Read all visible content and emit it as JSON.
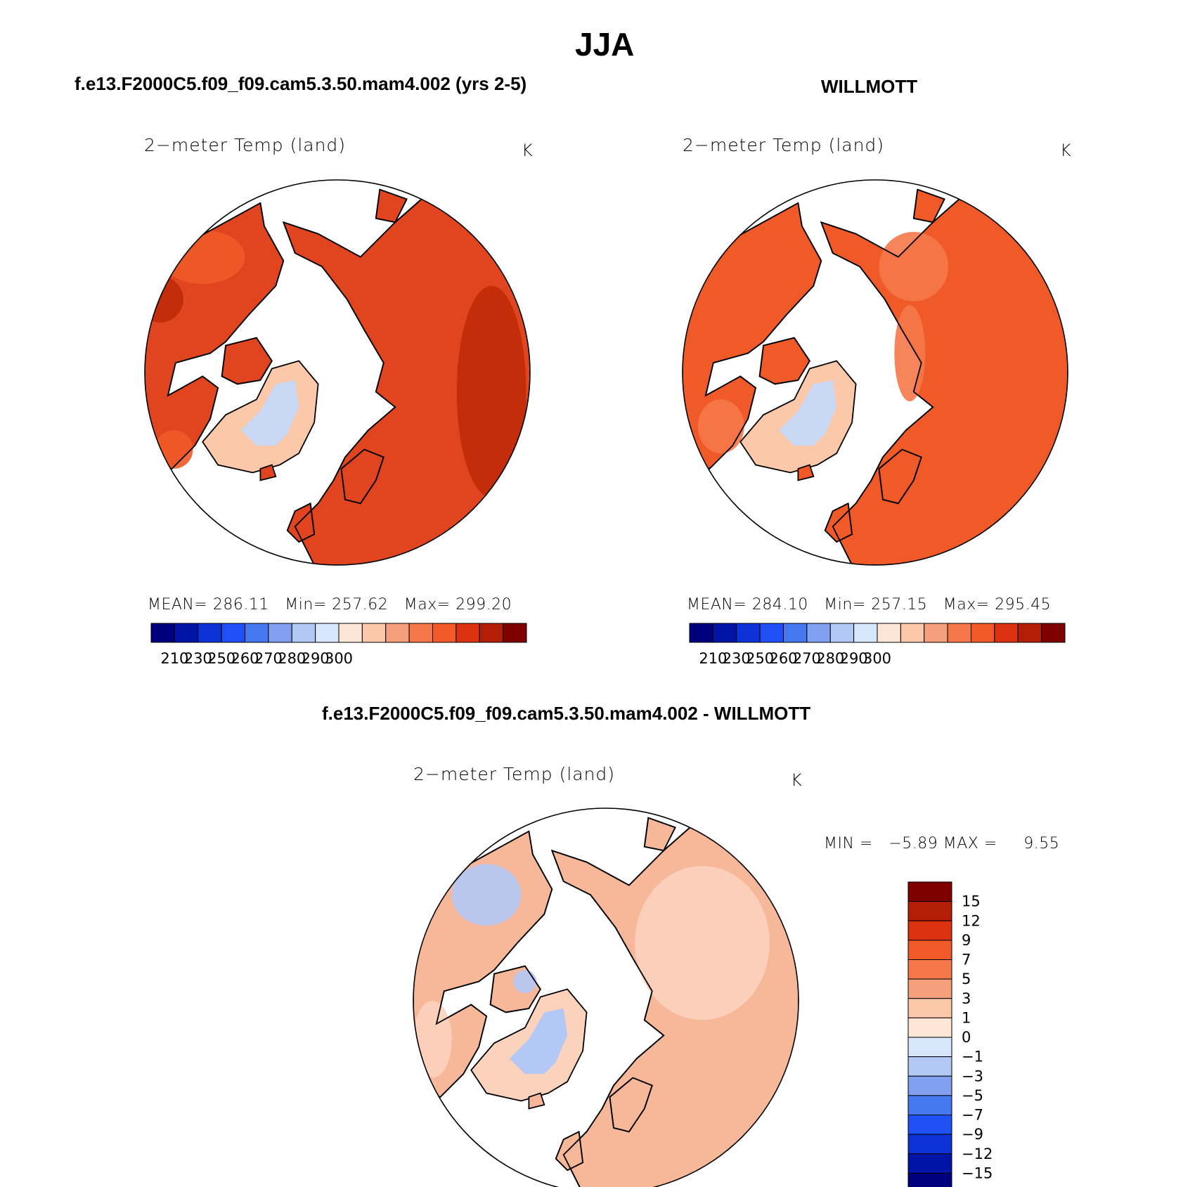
{
  "title": "JJA",
  "panels": {
    "model": {
      "case_title": "f.e13.F2000C5.f09_f09.cam5.3.50.mam4.002 (yrs 2-5)",
      "variable": "2−meter Temp (land)",
      "unit": "K",
      "stats": {
        "mean_label": "MEAN=",
        "mean": "286.11",
        "min_label": "Min=",
        "min": "257.62",
        "max_label": "Max=",
        "max": "299.20"
      }
    },
    "obs": {
      "case_title": "WILLMOTT",
      "variable": "2−meter Temp (land)",
      "unit": "K",
      "stats": {
        "mean_label": "MEAN=",
        "mean": "284.10",
        "min_label": "Min=",
        "min": "257.15",
        "max_label": "Max=",
        "max": "295.45"
      }
    },
    "diff": {
      "case_title": "f.e13.F2000C5.f09_f09.cam5.3.50.mam4.002 - WILLMOTT",
      "variable": "2−meter Temp (land)",
      "unit": "K",
      "stats": {
        "min_label": "MIN =",
        "min": "−5.89",
        "max_label": "MAX =",
        "max": "9.55"
      }
    }
  },
  "colorbar_abs": {
    "colors": [
      "#00007f",
      "#0014a8",
      "#0a32d6",
      "#1e50f5",
      "#4678f0",
      "#82a0f0",
      "#b4c8f5",
      "#d6e6fb",
      "#fde6d6",
      "#fbc8aa",
      "#f5a07a",
      "#f5784a",
      "#f05a28",
      "#dc3210",
      "#b41e05",
      "#800000"
    ],
    "tick_labels": [
      "210",
      "230",
      "250",
      "260",
      "270",
      "280",
      "290",
      "300"
    ]
  },
  "colorbar_diff": {
    "colors": [
      "#800000",
      "#b41e05",
      "#dc3210",
      "#f05a28",
      "#f5784a",
      "#f5a07a",
      "#fbc8aa",
      "#fde6d6",
      "#d6e6fb",
      "#b4c8f5",
      "#82a0f0",
      "#4678f0",
      "#1e50f5",
      "#0a32d6",
      "#0014a8",
      "#00007f"
    ],
    "tick_labels": [
      "15",
      "12",
      "9",
      "7",
      "5",
      "3",
      "1",
      "0",
      "−1",
      "−3",
      "−5",
      "−7",
      "−9",
      "−12",
      "−15"
    ]
  },
  "map_colors": {
    "model_land": "#e04520",
    "model_land_dark": "#c02a08",
    "model_land_mid": "#f05a28",
    "obs_land": "#f05a28",
    "obs_land_light": "#f5784a",
    "greenland_ice": "#c8d8f5",
    "greenland_edge": "#fbc8aa",
    "diff_land": "#f7b89a",
    "diff_land_light": "#fbd2bc",
    "diff_blue": "#b4c8f5"
  }
}
